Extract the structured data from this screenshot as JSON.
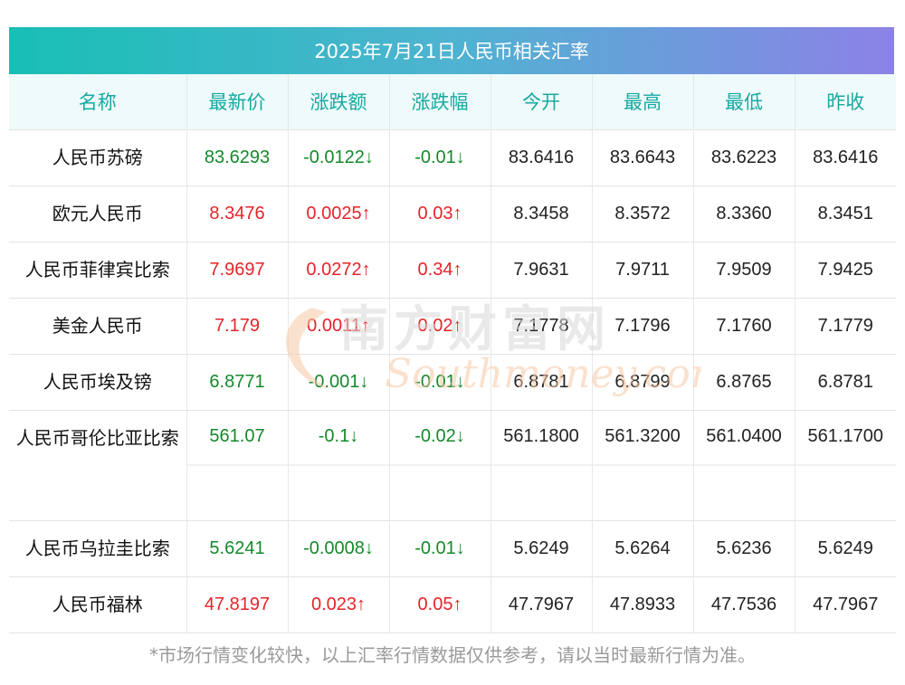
{
  "title": "2025年7月21日人民币相关汇率",
  "headers": [
    "名称",
    "最新价",
    "涨跌额",
    "涨跌幅",
    "今开",
    "最高",
    "最低",
    "昨收"
  ],
  "rows": [
    {
      "name": "人民币苏磅",
      "latest": "83.6293",
      "change": "-0.0122↓",
      "pct": "-0.01↓",
      "open": "83.6416",
      "high": "83.6643",
      "low": "83.6223",
      "prev": "83.6416",
      "dir": "down"
    },
    {
      "name": "欧元人民币",
      "latest": "8.3476",
      "change": "0.0025↑",
      "pct": "0.03↑",
      "open": "8.3458",
      "high": "8.3572",
      "low": "8.3360",
      "prev": "8.3451",
      "dir": "up"
    },
    {
      "name": "人民币菲律宾比索",
      "latest": "7.9697",
      "change": "0.0272↑",
      "pct": "0.34↑",
      "open": "7.9631",
      "high": "7.9711",
      "low": "7.9509",
      "prev": "7.9425",
      "dir": "up"
    },
    {
      "name": "美金人民币",
      "latest": "7.179",
      "change": "0.0011↑",
      "pct": "0.02↑",
      "open": "7.1778",
      "high": "7.1796",
      "low": "7.1760",
      "prev": "7.1779",
      "dir": "up"
    },
    {
      "name": "人民币埃及镑",
      "latest": "6.8771",
      "change": "-0.001↓",
      "pct": "-0.01↓",
      "open": "6.8781",
      "high": "6.8799",
      "low": "6.8765",
      "prev": "6.8781",
      "dir": "down"
    },
    {
      "name": "人民币哥伦比亚比索",
      "latest": "561.07",
      "change": "-0.1↓",
      "pct": "-0.02↓",
      "open": "561.1800",
      "high": "561.3200",
      "low": "561.0400",
      "prev": "561.1700",
      "dir": "down"
    },
    {
      "name": "人民币乌拉圭比索",
      "latest": "5.6241",
      "change": "-0.0008↓",
      "pct": "-0.01↓",
      "open": "5.6249",
      "high": "5.6264",
      "low": "5.6236",
      "prev": "5.6249",
      "dir": "down"
    },
    {
      "name": "人民币福林",
      "latest": "47.8197",
      "change": "0.023↑",
      "pct": "0.05↑",
      "open": "47.7967",
      "high": "47.8933",
      "low": "47.7536",
      "prev": "47.7967",
      "dir": "up"
    }
  ],
  "watermark": {
    "cn": "南方财富网",
    "en": "Southmoney.com"
  },
  "footer": "*市场行情变化较快，以上汇率行情数据仅供参考，请以当时最新行情为准。",
  "colors": {
    "up": "#e5242a",
    "down": "#15892b",
    "header_text": "#17a9a1"
  }
}
